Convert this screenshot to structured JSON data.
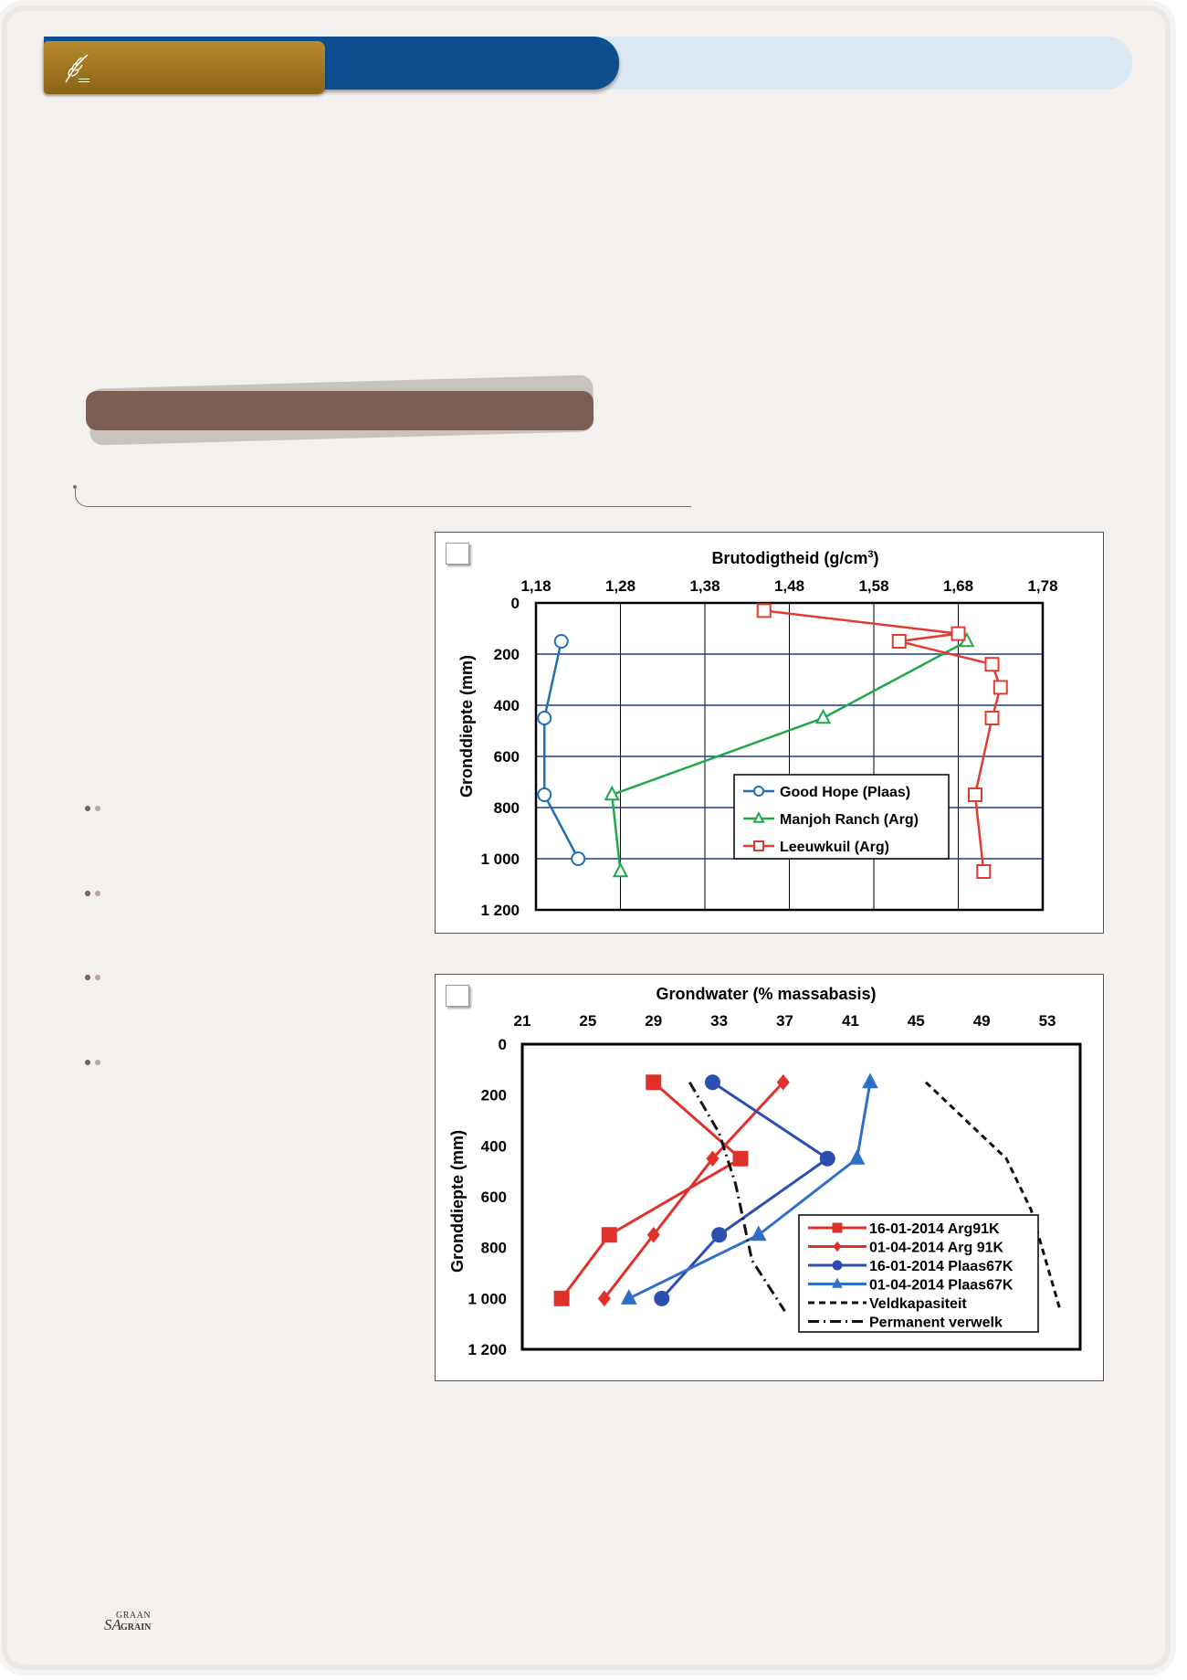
{
  "colors": {
    "header_blue": "#0e4e8f",
    "header_gold": "#a0761f",
    "banner_brown": "#7b5f55",
    "header_light": "#dbe7f2"
  },
  "header": {
    "logo_icon": "wheat-logo-icon"
  },
  "footer": {
    "logo_sa": "SA",
    "logo_graan": "GRAAN",
    "logo_grain": "GRAIN"
  },
  "chart_data": [
    {
      "type": "line",
      "title": "Brutodigtheid (g/cm³)",
      "title_main": "Brutodigtheid (g/cm",
      "title_sup": "3",
      "title_end": ")",
      "ylabel": "Gronddiepte (mm)",
      "x_axis_position": "top",
      "xlim": [
        1.18,
        1.78
      ],
      "ylim": [
        0,
        1200
      ],
      "y_inverted": true,
      "x_ticks": [
        "1,18",
        "1,28",
        "1,38",
        "1,48",
        "1,58",
        "1,68",
        "1,78"
      ],
      "y_ticks": [
        "0",
        "200",
        "400",
        "600",
        "800",
        "1 000",
        "1 200"
      ],
      "grid": true,
      "legend_position": "bottom-right",
      "series": [
        {
          "name": "Good Hope (Plaas)",
          "color": "#1f6fb5",
          "marker": "circle",
          "points": [
            [
              1.21,
              150
            ],
            [
              1.19,
              450
            ],
            [
              1.19,
              750
            ],
            [
              1.23,
              1000
            ]
          ]
        },
        {
          "name": "Manjoh Ranch (Arg)",
          "color": "#1fa84a",
          "marker": "triangle",
          "points": [
            [
              1.69,
              150
            ],
            [
              1.52,
              450
            ],
            [
              1.27,
              750
            ],
            [
              1.28,
              1050
            ]
          ]
        },
        {
          "name": "Leeuwkuil (Arg)",
          "color": "#e03c31",
          "marker": "square",
          "points": [
            [
              1.45,
              30
            ],
            [
              1.68,
              120
            ],
            [
              1.61,
              150
            ],
            [
              1.72,
              240
            ],
            [
              1.73,
              330
            ],
            [
              1.72,
              450
            ],
            [
              1.7,
              750
            ],
            [
              1.71,
              1050
            ]
          ]
        }
      ]
    },
    {
      "type": "line",
      "title": "Grondwater (% massabasis)",
      "ylabel": "Gronddiepte (mm)",
      "x_axis_position": "top",
      "xlim": [
        21,
        55
      ],
      "ylim": [
        0,
        1200
      ],
      "y_inverted": true,
      "x_ticks": [
        "21",
        "25",
        "29",
        "33",
        "37",
        "41",
        "45",
        "49",
        "53"
      ],
      "y_ticks": [
        "0",
        "200",
        "400",
        "600",
        "800",
        "1 000",
        "1 200"
      ],
      "grid": false,
      "legend_position": "bottom-right",
      "series": [
        {
          "name": "16-01-2014 Arg91K",
          "color": "#e0302a",
          "marker": "square",
          "dash": "solid",
          "points": [
            [
              29.0,
              150
            ],
            [
              34.3,
              450
            ],
            [
              26.3,
              750
            ],
            [
              23.4,
              1000
            ]
          ]
        },
        {
          "name": "01-04-2014 Arg 91K",
          "color": "#e0302a",
          "marker": "diamond",
          "dash": "solid",
          "points": [
            [
              36.9,
              150
            ],
            [
              32.6,
              450
            ],
            [
              29.0,
              750
            ],
            [
              26.0,
              1000
            ]
          ]
        },
        {
          "name": "16-01-2014 Plaas67K",
          "color": "#2a4fb0",
          "marker": "circle",
          "dash": "solid",
          "points": [
            [
              32.6,
              150
            ],
            [
              39.6,
              450
            ],
            [
              33.0,
              750
            ],
            [
              29.5,
              1000
            ]
          ]
        },
        {
          "name": "01-04-2014 Plaas67K",
          "color": "#2f6fc8",
          "marker": "triangle",
          "dash": "solid",
          "points": [
            [
              42.2,
              150
            ],
            [
              41.4,
              450
            ],
            [
              35.4,
              750
            ],
            [
              27.5,
              1000
            ]
          ]
        },
        {
          "name": "Veldkapasiteit",
          "color": "#111111",
          "marker": "none",
          "dash": "dashed",
          "points": [
            [
              45.6,
              150
            ],
            [
              50.5,
              450
            ],
            [
              52.0,
              650
            ],
            [
              53.8,
              1050
            ]
          ]
        },
        {
          "name": "Permanent verwelk",
          "color": "#111111",
          "marker": "none",
          "dash": "dashdot",
          "points": [
            [
              31.2,
              150
            ],
            [
              33.0,
              350
            ],
            [
              34.0,
              550
            ],
            [
              35.0,
              850
            ],
            [
              37.0,
              1050
            ]
          ]
        }
      ]
    }
  ]
}
